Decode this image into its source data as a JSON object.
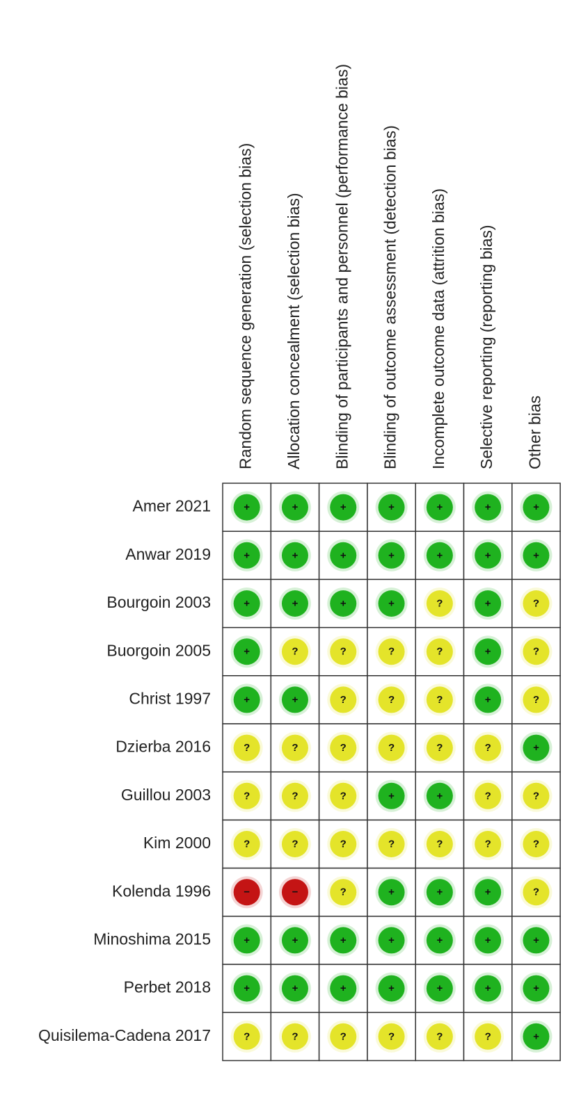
{
  "domains": [
    "Random sequence generation (selection bias)",
    "Allocation concealment (selection bias)",
    "Blinding of participants and personnel (performance bias)",
    "Blinding of outcome assessment (detection bias)",
    "Incomplete outcome data (attrition bias)",
    "Selective reporting (reporting bias)",
    "Other bias"
  ],
  "judgments": [
    {
      "symbol": "+",
      "color": "#1fb21f"
    },
    {
      "symbol": "?",
      "color": "#e4e42a"
    },
    {
      "symbol": "−",
      "color": "#c41414"
    }
  ],
  "studies": [
    {
      "name": "Amer 2021",
      "ratings": [
        "+",
        "+",
        "+",
        "+",
        "+",
        "+",
        "+"
      ]
    },
    {
      "name": "Anwar 2019",
      "ratings": [
        "+",
        "+",
        "+",
        "+",
        "+",
        "+",
        "+"
      ]
    },
    {
      "name": "Bourgoin 2003",
      "ratings": [
        "+",
        "+",
        "+",
        "+",
        "?",
        "+",
        "?"
      ]
    },
    {
      "name": "Buorgoin 2005",
      "ratings": [
        "+",
        "?",
        "?",
        "?",
        "?",
        "+",
        "?"
      ]
    },
    {
      "name": "Christ 1997",
      "ratings": [
        "+",
        "+",
        "?",
        "?",
        "?",
        "+",
        "?"
      ]
    },
    {
      "name": "Dzierba 2016",
      "ratings": [
        "?",
        "?",
        "?",
        "?",
        "?",
        "?",
        "+"
      ]
    },
    {
      "name": "Guillou 2003",
      "ratings": [
        "?",
        "?",
        "?",
        "+",
        "+",
        "?",
        "?"
      ]
    },
    {
      "name": "Kim 2000",
      "ratings": [
        "?",
        "?",
        "?",
        "?",
        "?",
        "?",
        "?"
      ]
    },
    {
      "name": "Kolenda 1996",
      "ratings": [
        "−",
        "−",
        "?",
        "+",
        "+",
        "+",
        "?"
      ]
    },
    {
      "name": "Minoshima 2015",
      "ratings": [
        "+",
        "+",
        "+",
        "+",
        "+",
        "+",
        "+"
      ]
    },
    {
      "name": "Perbet 2018",
      "ratings": [
        "+",
        "+",
        "+",
        "+",
        "+",
        "+",
        "+"
      ]
    },
    {
      "name": "Quisilema-Cadena 2017",
      "ratings": [
        "?",
        "?",
        "?",
        "?",
        "?",
        "?",
        "+"
      ]
    }
  ]
}
